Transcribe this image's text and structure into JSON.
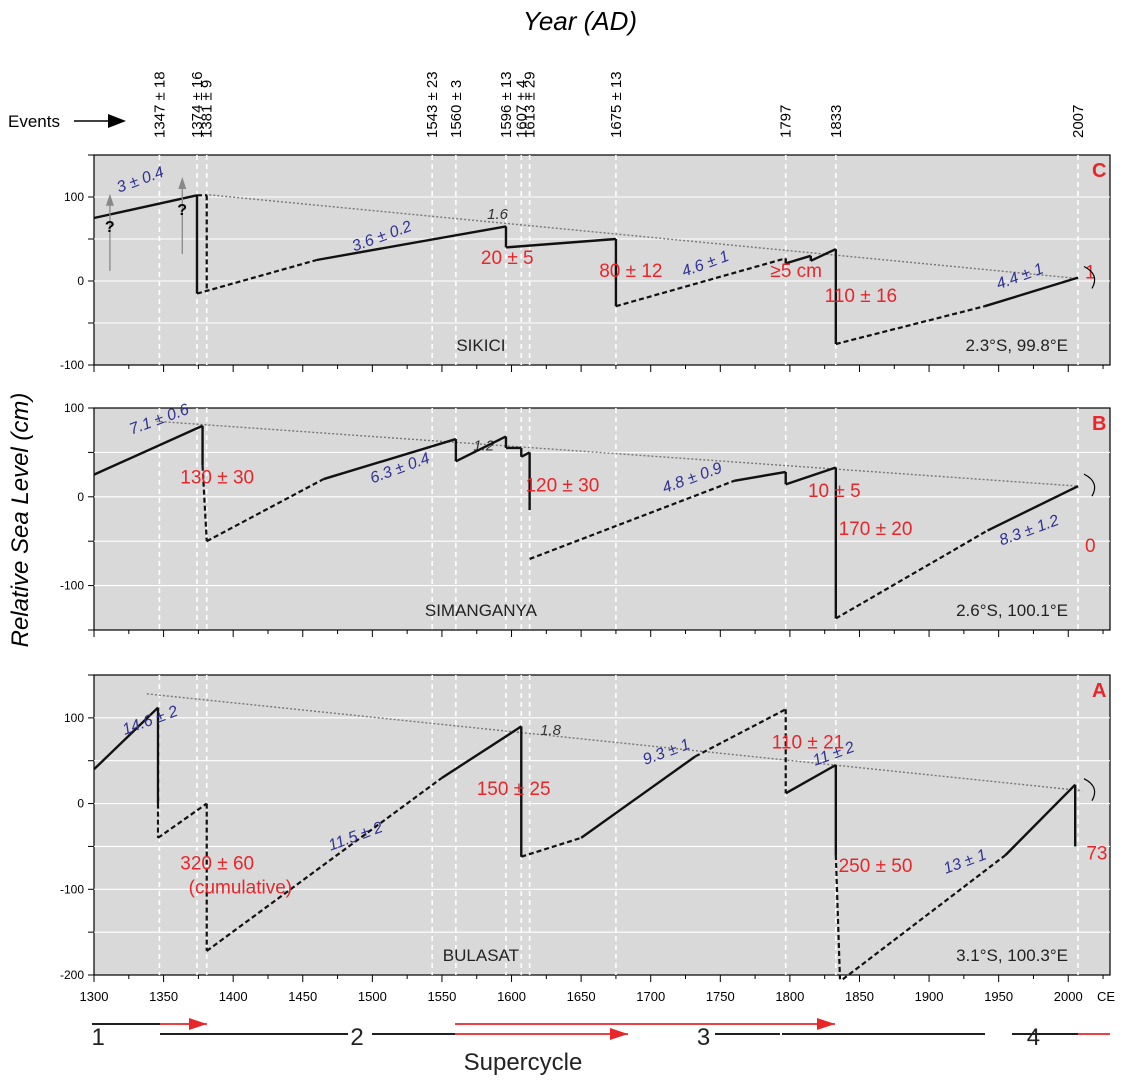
{
  "chart_data": {
    "type": "line",
    "title": "Year (AD)",
    "ylabel": "Relative Sea Level (cm)",
    "xlabel": "",
    "xunit": "CE",
    "xlim": [
      1300,
      2030
    ],
    "xticks": [
      1300,
      1350,
      1400,
      1450,
      1500,
      1550,
      1600,
      1650,
      1700,
      1750,
      1800,
      1850,
      1900,
      1950,
      2000
    ],
    "events_label": "Events",
    "events": [
      {
        "x": 1347,
        "label": "1347 ± 18"
      },
      {
        "x": 1374,
        "label": "1374 ± 16"
      },
      {
        "x": 1381,
        "label": "1381 ± 9"
      },
      {
        "x": 1543,
        "label": "1543 ± 23"
      },
      {
        "x": 1560,
        "label": "1560 ± 3"
      },
      {
        "x": 1596,
        "label": "1596 ± 13"
      },
      {
        "x": 1607,
        "label": "1607 ± 4"
      },
      {
        "x": 1613,
        "label": "1613 ± 29"
      },
      {
        "x": 1675,
        "label": "1675 ± 13"
      },
      {
        "x": 1797,
        "label": "1797"
      },
      {
        "x": 1833,
        "label": "1833"
      },
      {
        "x": 2007,
        "label": "2007"
      }
    ],
    "panels": [
      {
        "id": "C",
        "site": "SIKICI",
        "coords": "2.3°S, 99.8°E",
        "ylim": [
          -100,
          150
        ],
        "yticks": [
          -100,
          0,
          100
        ],
        "trend": {
          "points": [
            [
              1380,
              103
            ],
            [
              2007,
              3
            ]
          ],
          "label": "1.6",
          "at": [
            1590,
            74
          ]
        },
        "solid": [
          [
            [
              1300,
              75
            ],
            [
              1374,
              102
            ]
          ],
          [
            [
              1374,
              102
            ],
            [
              1374,
              -15
            ]
          ],
          [
            [
              1460,
              25
            ],
            [
              1596,
              65
            ]
          ],
          [
            [
              1596,
              65
            ],
            [
              1596,
              40
            ]
          ],
          [
            [
              1596,
              40
            ],
            [
              1675,
              50
            ]
          ],
          [
            [
              1675,
              50
            ],
            [
              1675,
              -30
            ]
          ],
          [
            [
              1797,
              27
            ],
            [
              1797,
              21
            ]
          ],
          [
            [
              1797,
              21
            ],
            [
              1815,
              30
            ]
          ],
          [
            [
              1815,
              30
            ],
            [
              1815,
              24
            ]
          ],
          [
            [
              1815,
              24
            ],
            [
              1833,
              38
            ]
          ],
          [
            [
              1833,
              38
            ],
            [
              1833,
              -75
            ]
          ],
          [
            [
              1940,
              -30
            ],
            [
              2007,
              4
            ]
          ]
        ],
        "dashed": [
          [
            [
              1374,
              102
            ],
            [
              1381,
              102
            ]
          ],
          [
            [
              1381,
              102
            ],
            [
              1381,
              -10
            ]
          ],
          [
            [
              1374,
              -15
            ],
            [
              1460,
              25
            ]
          ],
          [
            [
              1675,
              -30
            ],
            [
              1797,
              27
            ]
          ],
          [
            [
              1833,
              -75
            ],
            [
              1940,
              -30
            ]
          ]
        ],
        "rates": [
          {
            "text": "3 ± 0.4",
            "x": 1318,
            "y": 105
          },
          {
            "text": "3.6 ± 0.2",
            "x": 1487,
            "y": 35
          },
          {
            "text": "4.6 ± 1",
            "x": 1724,
            "y": 5
          },
          {
            "text": "4.4 ± 1",
            "x": 1950,
            "y": -10
          }
        ],
        "drops": [
          {
            "text": "20 ± 5",
            "x": 1578,
            "y": 20
          },
          {
            "text": "80 ± 12",
            "x": 1663,
            "y": 5
          },
          {
            "text": "≥5 cm",
            "x": 1786,
            "y": 5
          },
          {
            "text": "110 ± 16",
            "x": 1825,
            "y": -25
          },
          {
            "text": "1",
            "x": 2012,
            "y": 3
          }
        ],
        "qmarks": [
          {
            "x": 1310,
            "y": 30
          },
          {
            "x": 1362,
            "y": 50
          }
        ]
      },
      {
        "id": "B",
        "site": "SIMANGANYA",
        "coords": "2.6°S, 100.1°E",
        "ylim": [
          -150,
          100
        ],
        "yticks": [
          -100,
          0,
          100
        ],
        "trend": {
          "points": [
            [
              1345,
              85
            ],
            [
              2007,
              12
            ]
          ],
          "label": "1.2",
          "at": [
            1580,
            52
          ]
        },
        "solid": [
          [
            [
              1300,
              25
            ],
            [
              1378,
              80
            ]
          ],
          [
            [
              1378,
              80
            ],
            [
              1378,
              35
            ]
          ],
          [
            [
              1465,
              20
            ],
            [
              1560,
              65
            ]
          ],
          [
            [
              1560,
              65
            ],
            [
              1560,
              40
            ]
          ],
          [
            [
              1560,
              40
            ],
            [
              1596,
              68
            ]
          ],
          [
            [
              1596,
              68
            ],
            [
              1596,
              55
            ]
          ],
          [
            [
              1596,
              55
            ],
            [
              1607,
              55
            ]
          ],
          [
            [
              1607,
              55
            ],
            [
              1607,
              45
            ]
          ],
          [
            [
              1607,
              45
            ],
            [
              1613,
              50
            ]
          ],
          [
            [
              1613,
              50
            ],
            [
              1613,
              -15
            ]
          ],
          [
            [
              1760,
              18
            ],
            [
              1797,
              28
            ]
          ],
          [
            [
              1797,
              28
            ],
            [
              1797,
              14
            ]
          ],
          [
            [
              1797,
              14
            ],
            [
              1833,
              33
            ]
          ],
          [
            [
              1833,
              33
            ],
            [
              1833,
              -137
            ]
          ],
          [
            [
              1942,
              -38
            ],
            [
              2007,
              12
            ]
          ]
        ],
        "dashed": [
          [
            [
              1378,
              35
            ],
            [
              1381,
              -50
            ]
          ],
          [
            [
              1381,
              -50
            ],
            [
              1465,
              20
            ]
          ],
          [
            [
              1613,
              -70
            ],
            [
              1760,
              18
            ]
          ],
          [
            [
              1833,
              -137
            ],
            [
              1942,
              -38
            ]
          ]
        ],
        "rates": [
          {
            "text": "7.1 ± 0.6",
            "x": 1327,
            "y": 70
          },
          {
            "text": "6.3 ± 0.4",
            "x": 1500,
            "y": 15
          },
          {
            "text": "4.8 ± 0.9",
            "x": 1710,
            "y": 4
          },
          {
            "text": "8.3 ± 1.2",
            "x": 1952,
            "y": -55
          }
        ],
        "drops": [
          {
            "text": "130 ± 30",
            "x": 1362,
            "y": 15
          },
          {
            "text": "120 ± 30",
            "x": 1610,
            "y": 6
          },
          {
            "text": "10 ± 5",
            "x": 1813,
            "y": 0
          },
          {
            "text": "170 ± 20",
            "x": 1835,
            "y": -43
          },
          {
            "text": "0",
            "x": 2012,
            "y": -62
          }
        ],
        "qmarks": []
      },
      {
        "id": "A",
        "site": "BULASAT",
        "coords": "3.1°S, 100.3°E",
        "ylim": [
          -200,
          150
        ],
        "yticks": [
          -200,
          -100,
          0,
          100
        ],
        "trend": {
          "points": [
            [
              1338,
              128
            ],
            [
              2010,
              15
            ]
          ],
          "label": "1.8",
          "at": [
            1628,
            80
          ]
        },
        "solid": [
          [
            [
              1300,
              40
            ],
            [
              1346,
              112
            ]
          ],
          [
            [
              1346,
              112
            ],
            [
              1346,
              0
            ]
          ],
          [
            [
              1550,
              30
            ],
            [
              1607,
              90
            ]
          ],
          [
            [
              1607,
              90
            ],
            [
              1607,
              -62
            ]
          ],
          [
            [
              1650,
              -40
            ],
            [
              1732,
              55
            ]
          ],
          [
            [
              1797,
              12
            ],
            [
              1833,
              45
            ]
          ],
          [
            [
              1833,
              45
            ],
            [
              1833,
              -60
            ]
          ],
          [
            [
              1955,
              -60
            ],
            [
              2005,
              22
            ]
          ],
          [
            [
              2005,
              22
            ],
            [
              2005,
              -50
            ]
          ]
        ],
        "dashed": [
          [
            [
              1346,
              0
            ],
            [
              1346,
              -40
            ]
          ],
          [
            [
              1346,
              -40
            ],
            [
              1381,
              0
            ]
          ],
          [
            [
              1381,
              0
            ],
            [
              1381,
              -172
            ]
          ],
          [
            [
              1381,
              -172
            ],
            [
              1550,
              30
            ]
          ],
          [
            [
              1607,
              -62
            ],
            [
              1650,
              -40
            ]
          ],
          [
            [
              1732,
              55
            ],
            [
              1797,
              110
            ]
          ],
          [
            [
              1797,
              110
            ],
            [
              1797,
              12
            ]
          ],
          [
            [
              1833,
              -60
            ],
            [
              1836,
              -205
            ]
          ],
          [
            [
              1838,
              -205
            ],
            [
              1955,
              -60
            ]
          ]
        ],
        "rates": [
          {
            "text": "14.6 ± 2",
            "x": 1322,
            "y": 80
          },
          {
            "text": "11.5 ± 2",
            "x": 1470,
            "y": -55
          },
          {
            "text": "9.3 ± 1",
            "x": 1696,
            "y": 45
          },
          {
            "text": "11 ± 2",
            "x": 1818,
            "y": 44
          },
          {
            "text": "13 ± 1",
            "x": 1912,
            "y": -82
          }
        ],
        "drops": [
          {
            "text": "110 ± 21",
            "x": 1787,
            "y": 64
          },
          {
            "text": "150 ± 25",
            "x": 1575,
            "y": 10
          },
          {
            "text": "320 ± 60",
            "x": 1362,
            "y": -77
          },
          {
            "text": "(cumulative)",
            "x": 1368,
            "y": -105
          },
          {
            "text": "250 ± 50",
            "x": 1835,
            "y": -80
          },
          {
            "text": "73",
            "x": 2013,
            "y": -65
          }
        ],
        "qmarks": []
      }
    ],
    "supercycle": {
      "label": "Supercycle",
      "numbers": [
        {
          "text": "1",
          "x": 1303
        },
        {
          "text": "2",
          "x": 1489
        },
        {
          "text": "3",
          "x": 1738
        },
        {
          "text": "4",
          "x": 1975
        }
      ]
    }
  }
}
